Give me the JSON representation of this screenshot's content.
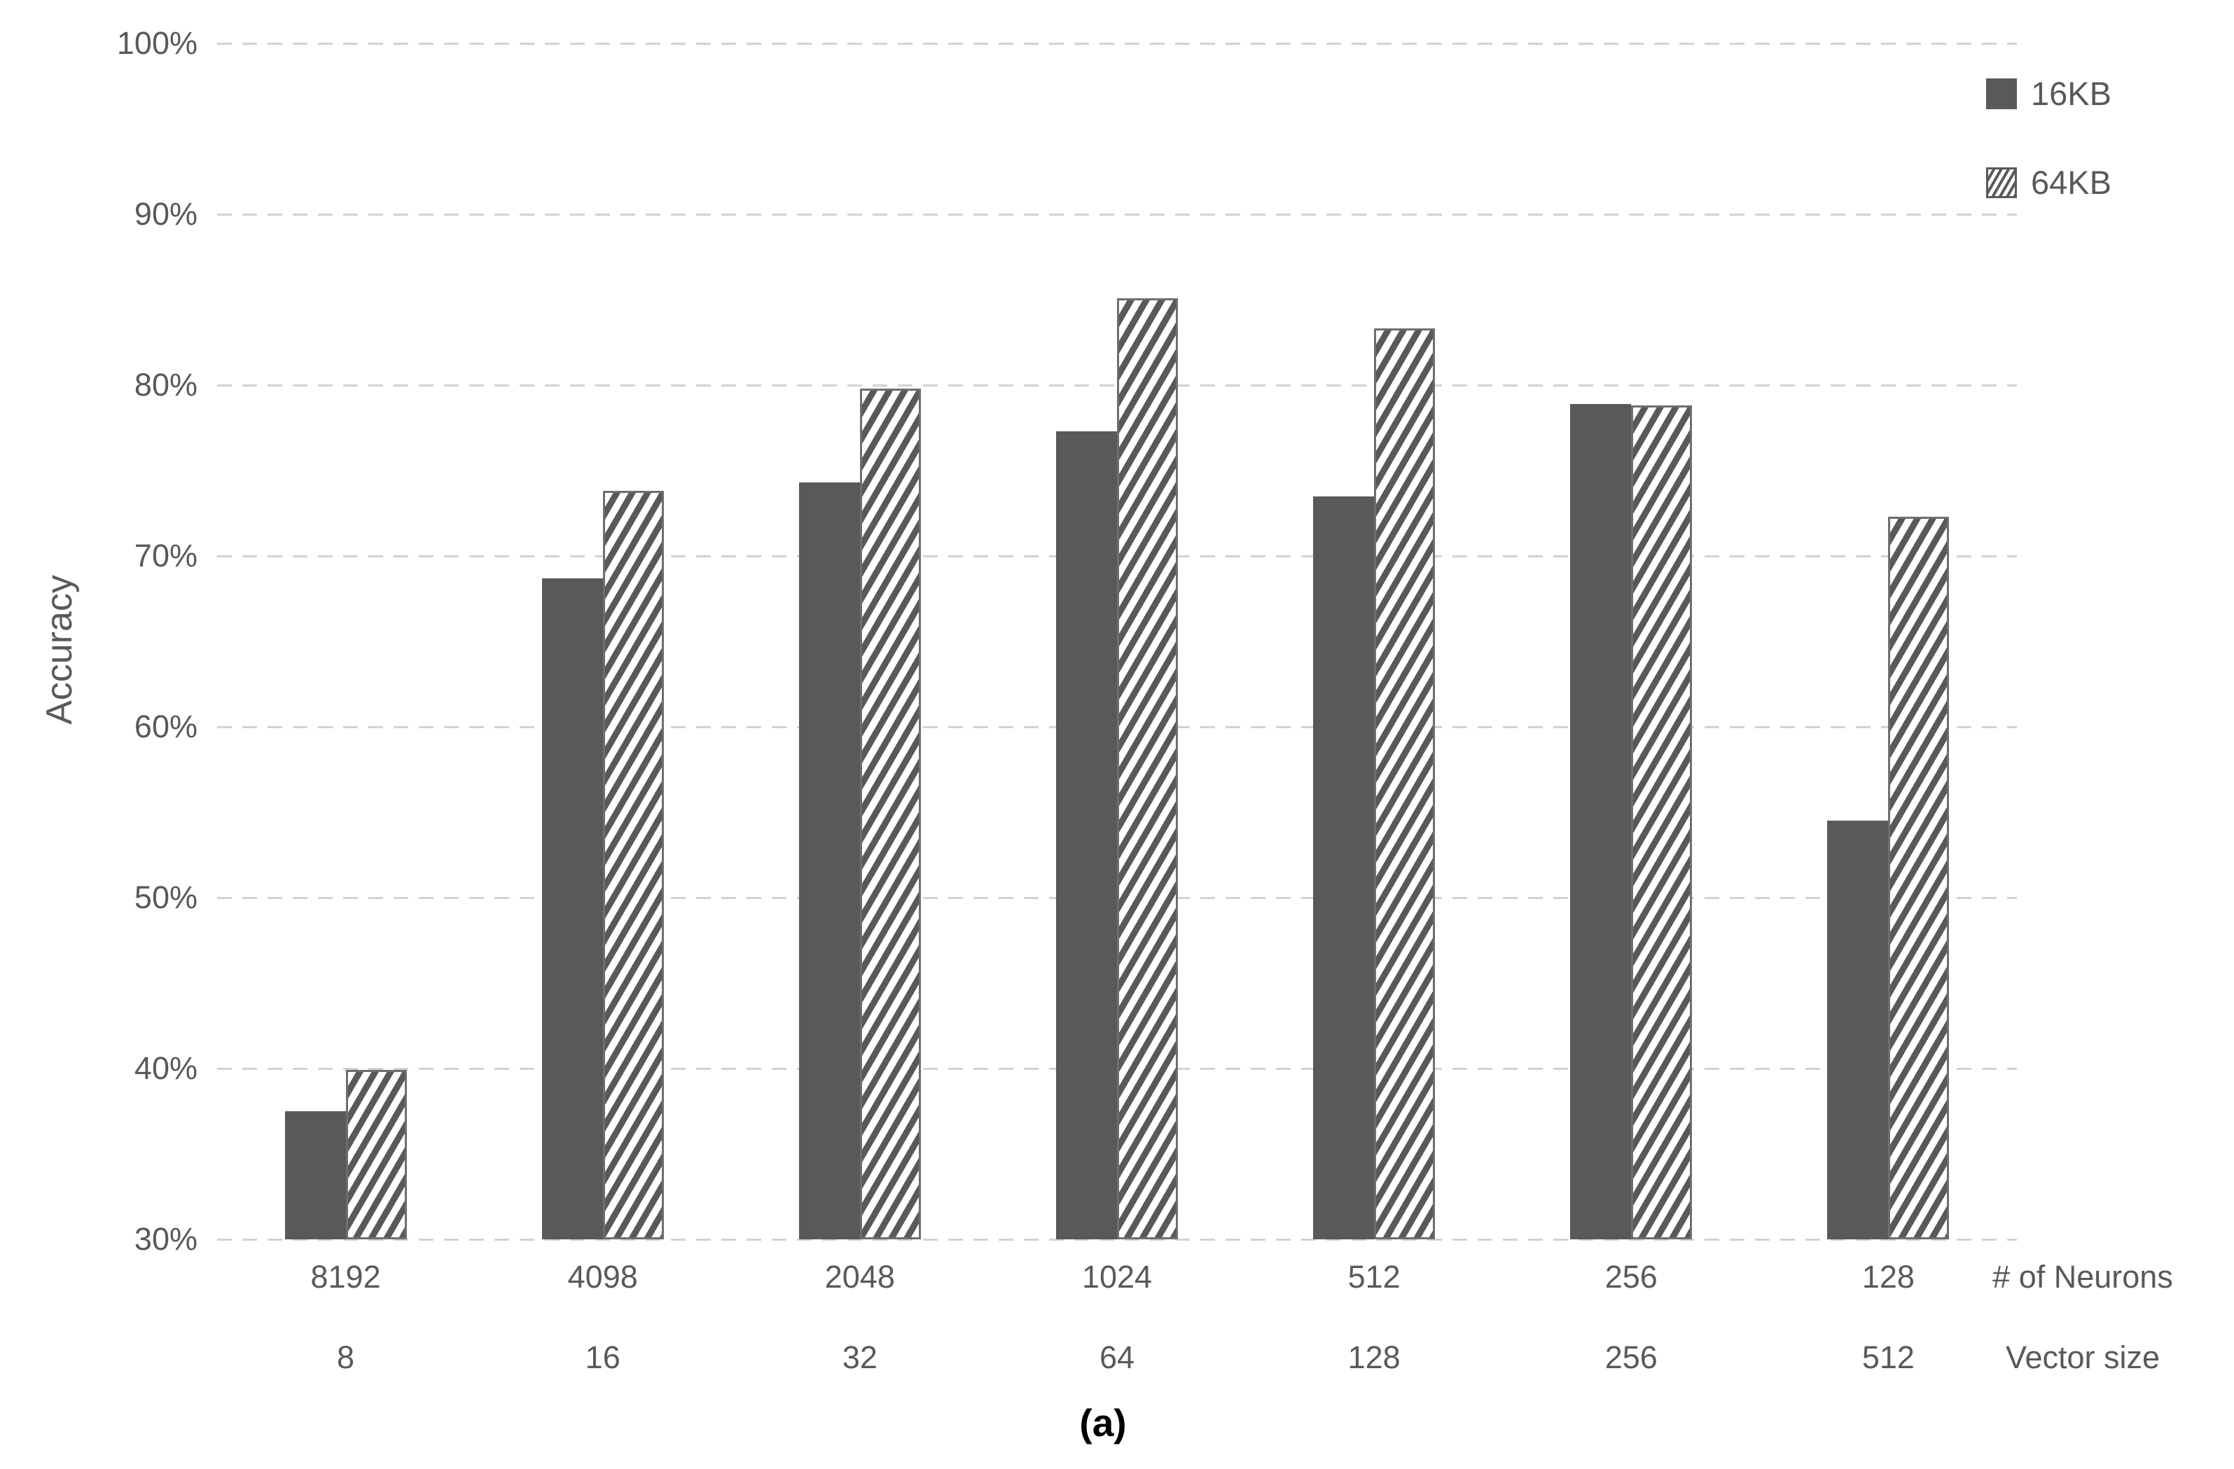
{
  "chart_data": {
    "type": "bar",
    "title": "",
    "ylabel": "Accuracy",
    "caption": "(a)",
    "legend_position": "top-right",
    "grid": "dashed-horizontal",
    "y_axis": {
      "min": 30,
      "max": 100,
      "step": 10,
      "tick_labels": [
        "100%",
        "90%",
        "80%",
        "70%",
        "60%",
        "50%",
        "40%",
        "30%"
      ],
      "tick_values": [
        100,
        90,
        80,
        70,
        60,
        50,
        40,
        30
      ]
    },
    "x_axis": {
      "row1_label": "# of Neurons",
      "row2_label": "Vector size",
      "neurons": [
        "8192",
        "4098",
        "2048",
        "1024",
        "512",
        "256",
        "128"
      ],
      "vector_sizes": [
        "8",
        "16",
        "32",
        "64",
        "128",
        "256",
        "512"
      ]
    },
    "series": [
      {
        "name": "16KB",
        "style": "solid",
        "values": [
          37.5,
          68.7,
          74.3,
          77.3,
          73.5,
          78.9,
          54.5
        ]
      },
      {
        "name": "64KB",
        "style": "hatched",
        "values": [
          39.9,
          73.8,
          79.8,
          85.1,
          83.3,
          78.8,
          72.3
        ]
      }
    ],
    "colors": {
      "bar_solid": "#595959",
      "hatch_stripe": "#595959",
      "hatch_background": "#ffffff",
      "hatch_border": "#6e6e6e",
      "gridline": "#d2d2d2",
      "axis_text": "#595959",
      "caption_text": "#000000"
    }
  }
}
